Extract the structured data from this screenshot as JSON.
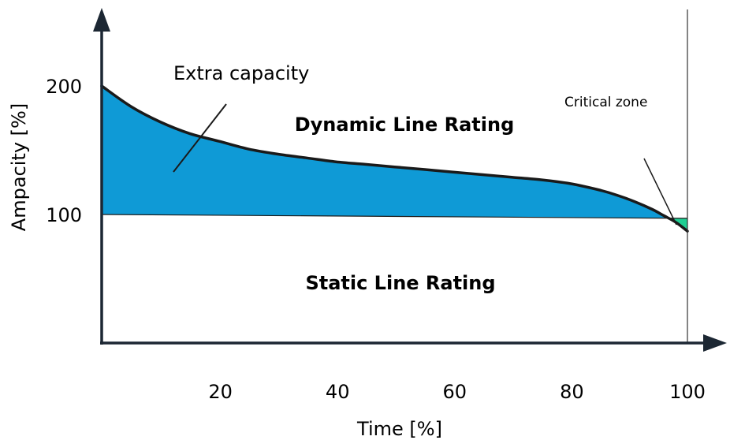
{
  "chart_data": {
    "type": "area",
    "title": "",
    "xlabel": "Time [%]",
    "ylabel": "Ampacity [%]",
    "x_ticks": [
      20,
      40,
      60,
      80,
      100
    ],
    "y_ticks": [
      100,
      200
    ],
    "xlim": [
      0,
      100
    ],
    "ylim": [
      0,
      200
    ],
    "grid": false,
    "dynamic_curve": {
      "x": [
        0,
        5,
        10,
        15,
        20,
        25,
        30,
        35,
        40,
        45,
        50,
        55,
        60,
        65,
        70,
        75,
        80,
        85,
        88,
        91,
        94,
        96,
        98,
        100
      ],
      "y": [
        200,
        184,
        172,
        163,
        157,
        151,
        147,
        144,
        141,
        139,
        137,
        135,
        133,
        131,
        129,
        127,
        124,
        119,
        115,
        110,
        104,
        99,
        94,
        87
      ]
    },
    "static_line": {
      "x": [
        0,
        100
      ],
      "y": [
        100,
        97
      ]
    },
    "critical_zone_x": [
      96.5,
      100
    ],
    "annotations": {
      "extra_capacity": "Extra capacity",
      "critical_zone": "Critical zone",
      "dynamic_label": "Dynamic Line Rating",
      "static_label": "Static Line Rating"
    },
    "colors": {
      "extra_capacity_fill": "#0f9ad6",
      "critical_zone_fill": "#1fcf93",
      "curve": "#1a1a1a",
      "axis": "#1c2733"
    }
  }
}
